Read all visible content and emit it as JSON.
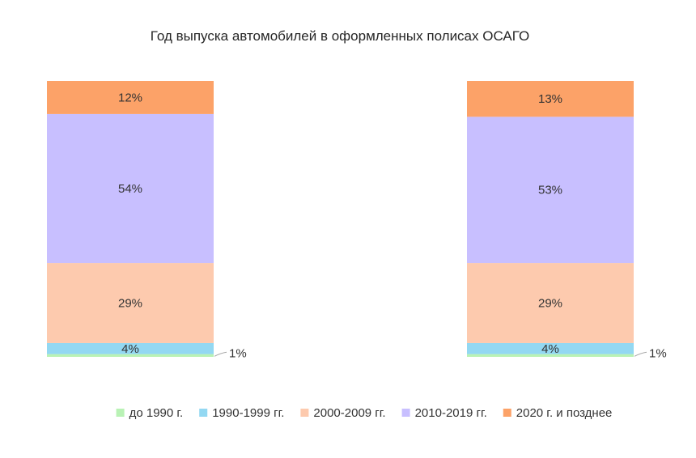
{
  "chart_data": {
    "type": "bar",
    "stacked": true,
    "normalized": true,
    "title": "Год выпуска автомобилей в оформленных полисах ОСАГО",
    "categories": [
      "",
      ""
    ],
    "series": [
      {
        "name": "до 1990 г.",
        "color": "#b9f2b5",
        "values": [
          1,
          1
        ],
        "labels": [
          "1%",
          "1%"
        ]
      },
      {
        "name": "1990-1999 гг.",
        "color": "#93d8f2",
        "values": [
          4,
          4
        ],
        "labels": [
          "4%",
          "4%"
        ]
      },
      {
        "name": "2000-2009 гг.",
        "color": "#fdcaae",
        "values": [
          29,
          29
        ],
        "labels": [
          "29%",
          "29%"
        ]
      },
      {
        "name": "2010-2019 гг.",
        "color": "#c8bfff",
        "values": [
          54,
          53
        ],
        "labels": [
          "54%",
          "53%"
        ]
      },
      {
        "name": "2020 г. и позднее",
        "color": "#fca268",
        "values": [
          12,
          13
        ],
        "labels": [
          "12%",
          "13%"
        ]
      }
    ],
    "ylim": [
      0,
      100
    ],
    "grid": false,
    "legend": "bottom"
  }
}
